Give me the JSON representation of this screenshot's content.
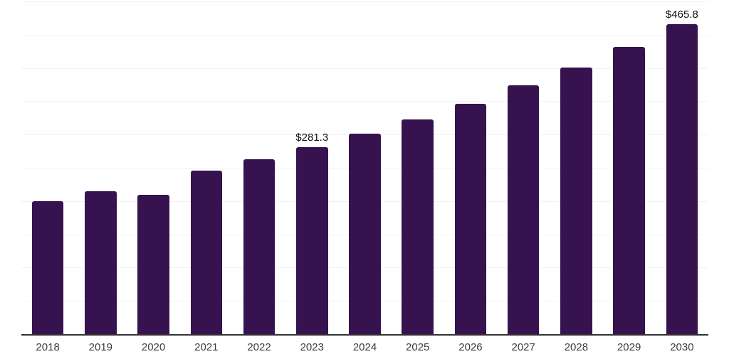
{
  "chart_data": {
    "type": "bar",
    "title": "",
    "xlabel": "",
    "ylabel": "",
    "categories": [
      "2018",
      "2019",
      "2020",
      "2021",
      "2022",
      "2023",
      "2024",
      "2025",
      "2026",
      "2027",
      "2028",
      "2029",
      "2030"
    ],
    "values": [
      200.0,
      215.0,
      209.0,
      246.0,
      263.0,
      281.3,
      301.0,
      322.5,
      346.5,
      373.5,
      400.5,
      431.5,
      465.8
    ],
    "point_labels": [
      null,
      null,
      null,
      null,
      null,
      "$281.3",
      null,
      null,
      null,
      null,
      null,
      null,
      "$465.8"
    ],
    "ylim": [
      0,
      500
    ],
    "gridline_step": 50,
    "grid": "horizontal-only",
    "y_axis_tick_labels_visible": false,
    "legend": "none",
    "colors": {
      "bar_fill": "#36124E",
      "gridline": "#F2F2F2",
      "axis_line": "#333333",
      "x_tick_label": "#3C3C3C",
      "value_label": "#111111",
      "background": "#FFFFFF"
    }
  }
}
